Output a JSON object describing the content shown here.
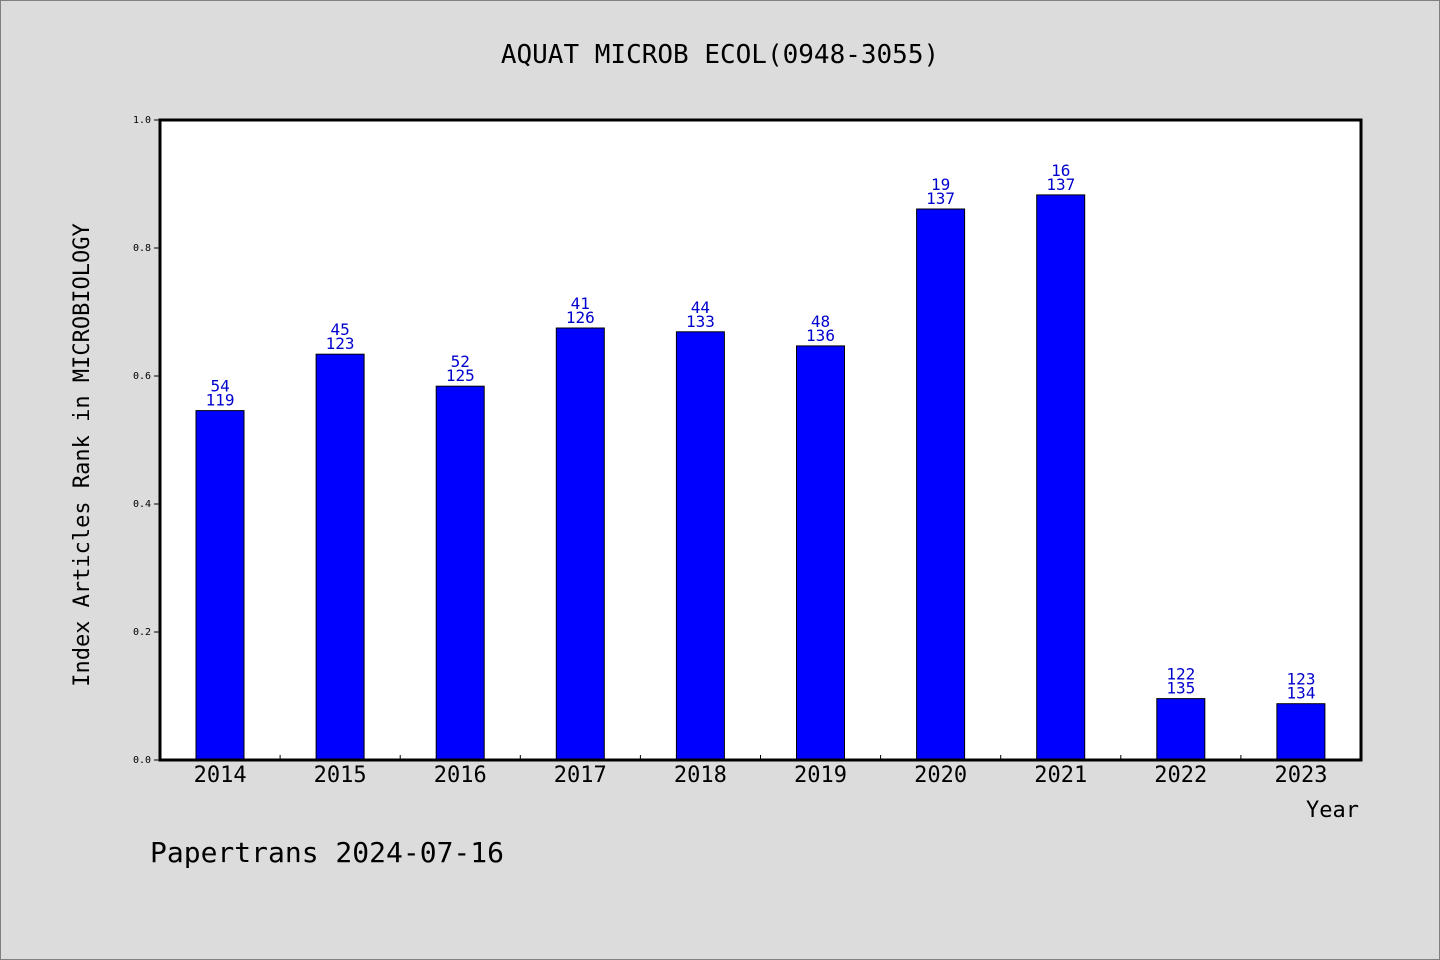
{
  "chart_data": {
    "type": "bar",
    "title": "AQUAT MICROB ECOL(0948-3055)",
    "xlabel": "Year",
    "ylabel": "Index Articles Rank in MICROBIOLOGY",
    "ylim": [
      0,
      1.0
    ],
    "yticks": [
      "0.0",
      "0.2",
      "0.4",
      "0.6",
      "0.8",
      "1.0"
    ],
    "categories": [
      "2014",
      "2015",
      "2016",
      "2017",
      "2018",
      "2019",
      "2020",
      "2021",
      "2022",
      "2023"
    ],
    "values": [
      0.546,
      0.634,
      0.584,
      0.675,
      0.669,
      0.647,
      0.861,
      0.883,
      0.096,
      0.088
    ],
    "labels_top": [
      "54",
      "45",
      "52",
      "41",
      "44",
      "48",
      "19",
      "16",
      "122",
      "123"
    ],
    "labels_bottom": [
      "119",
      "123",
      "125",
      "126",
      "133",
      "136",
      "137",
      "137",
      "135",
      "134"
    ],
    "bar_color": "#0000ff",
    "label_color": "#0000cc",
    "grid": false
  },
  "footer": {
    "text": "Papertrans 2024-07-16"
  }
}
